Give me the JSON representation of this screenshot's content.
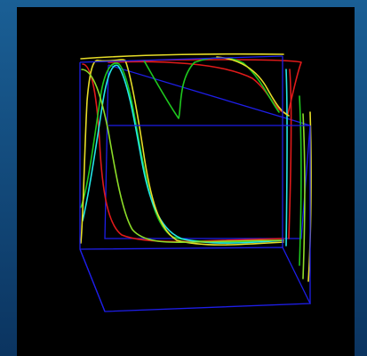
{
  "window": {
    "title": ""
  },
  "colors": {
    "backdrop_top": "#1a5f95",
    "backdrop_bottom": "#0b3460",
    "viewport_background": "#000000",
    "box_frame": "#1e1ee8",
    "curve_red": "#e01a1a",
    "curve_green": "#1ec81e",
    "curve_cyan": "#22e6e6",
    "curve_yellow": "#e6dc28",
    "curve_olive": "#8cdc28"
  },
  "scene": {
    "type": "3d-wireframe-plot",
    "axes_labels_shown": false,
    "series": [
      {
        "color_key": "curve_red"
      },
      {
        "color_key": "curve_green"
      },
      {
        "color_key": "curve_cyan"
      },
      {
        "color_key": "curve_yellow"
      },
      {
        "color_key": "curve_olive"
      }
    ]
  }
}
